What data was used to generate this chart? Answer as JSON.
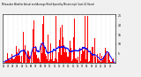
{
  "title": "Milwaukee Weather Actual and Average Wind Speed by Minute mph (Last 24 Hours)",
  "background_color": "#f0f0f0",
  "plot_bg_color": "#ffffff",
  "bar_color": "#ff0000",
  "line_color": "#0000ff",
  "grid_color": "#aaaaaa",
  "ylim": [
    0,
    26
  ],
  "yticks": [
    5,
    10,
    15,
    20,
    25
  ],
  "n_points": 1440,
  "seed": 42
}
